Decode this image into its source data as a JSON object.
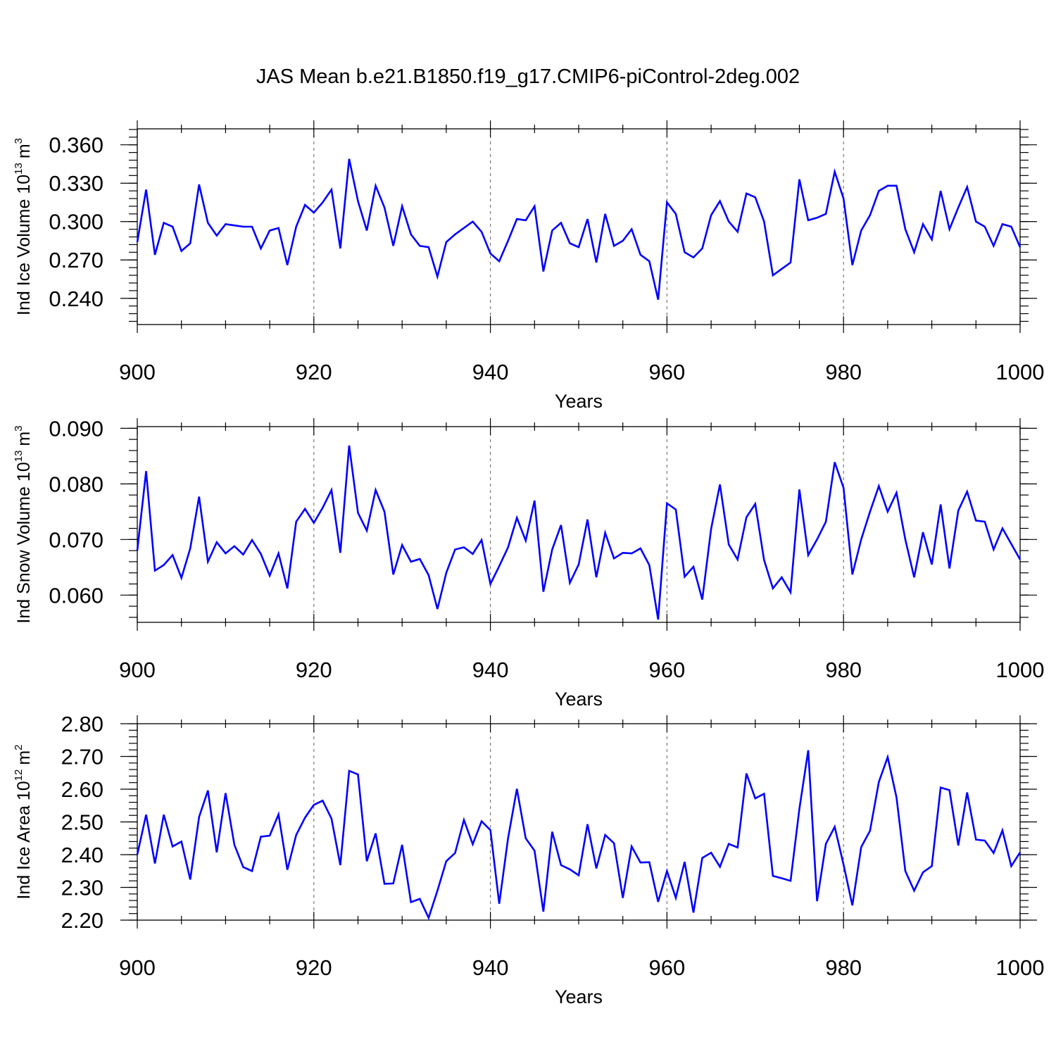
{
  "title": "JAS Mean b.e21.B1850.f19_g17.CMIP6-piControl-2deg.002",
  "line_color": "#0000ff",
  "chart_data": [
    {
      "type": "line",
      "title": "",
      "ylabel": "Ind Ice Volume 10",
      "ylabel_exp": "13",
      "ylabel_unit": "m",
      "ylabel_unit_exp": "3",
      "xlabel": "Years",
      "xlim": [
        900,
        1000
      ],
      "ylim": [
        0.2195,
        0.3725
      ],
      "grid_x": [
        920,
        940,
        960,
        980
      ],
      "x_ticks": [
        900,
        920,
        940,
        960,
        980,
        1000
      ],
      "x_tick_labels": [
        "900",
        "920",
        "940",
        "960",
        "980",
        "1000"
      ],
      "y_ticks": [
        0.24,
        0.27,
        0.3,
        0.33,
        0.36
      ],
      "y_tick_labels": [
        "0.240",
        "0.270",
        "0.300",
        "0.330",
        "0.360"
      ],
      "y_minor_step": 0.006,
      "series": [
        {
          "name": "Ind Ice Volume",
          "x_start": 900,
          "values": [
            0.284,
            0.325,
            0.274,
            0.299,
            0.296,
            0.277,
            0.283,
            0.329,
            0.299,
            0.289,
            0.298,
            0.297,
            0.296,
            0.296,
            0.279,
            0.293,
            0.295,
            0.266,
            0.296,
            0.313,
            0.307,
            0.315,
            0.325,
            0.279,
            0.349,
            0.316,
            0.293,
            0.328,
            0.311,
            0.281,
            0.312,
            0.29,
            0.281,
            0.28,
            0.257,
            0.284,
            0.29,
            0.295,
            0.3,
            0.292,
            0.275,
            0.269,
            0.285,
            0.302,
            0.301,
            0.312,
            0.261,
            0.293,
            0.299,
            0.283,
            0.28,
            0.302,
            0.268,
            0.306,
            0.281,
            0.285,
            0.294,
            0.274,
            0.269,
            0.239,
            0.315,
            0.306,
            0.276,
            0.272,
            0.279,
            0.305,
            0.316,
            0.3,
            0.292,
            0.322,
            0.319,
            0.3,
            0.258,
            0.263,
            0.268,
            0.333,
            0.301,
            0.303,
            0.306,
            0.339,
            0.318,
            0.266,
            0.293,
            0.305,
            0.324,
            0.328,
            0.328,
            0.294,
            0.276,
            0.298,
            0.286,
            0.324,
            0.294,
            0.311,
            0.327,
            0.3,
            0.296,
            0.281,
            0.298,
            0.296,
            0.28
          ]
        }
      ]
    },
    {
      "type": "line",
      "title": "",
      "ylabel": "Ind Snow Volume 10",
      "ylabel_exp": "13",
      "ylabel_unit": "m",
      "ylabel_unit_exp": "3",
      "xlabel": "Years",
      "xlim": [
        900,
        1000
      ],
      "ylim": [
        0.0551,
        0.0903
      ],
      "grid_x": [
        920,
        940,
        960,
        980
      ],
      "x_ticks": [
        900,
        920,
        940,
        960,
        980,
        1000
      ],
      "x_tick_labels": [
        "900",
        "920",
        "940",
        "960",
        "980",
        "1000"
      ],
      "y_ticks": [
        0.06,
        0.07,
        0.08,
        0.09
      ],
      "y_tick_labels": [
        "0.060",
        "0.070",
        "0.080",
        "0.090"
      ],
      "y_minor_step": 0.002,
      "series": [
        {
          "name": "Ind Snow Volume",
          "x_start": 900,
          "values": [
            0.068,
            0.0823,
            0.0644,
            0.0654,
            0.0672,
            0.0631,
            0.0684,
            0.0777,
            0.066,
            0.0695,
            0.0675,
            0.0688,
            0.0673,
            0.0699,
            0.0674,
            0.0635,
            0.0675,
            0.0612,
            0.0732,
            0.0755,
            0.073,
            0.0757,
            0.0789,
            0.0676,
            0.0869,
            0.0748,
            0.0716,
            0.0789,
            0.075,
            0.0637,
            0.069,
            0.066,
            0.0665,
            0.0636,
            0.0575,
            0.064,
            0.0682,
            0.0686,
            0.0674,
            0.0699,
            0.062,
            0.0652,
            0.0686,
            0.0739,
            0.0698,
            0.077,
            0.0606,
            0.0682,
            0.0726,
            0.0622,
            0.0655,
            0.0736,
            0.0632,
            0.0712,
            0.0666,
            0.0676,
            0.0675,
            0.0684,
            0.0654,
            0.0556,
            0.0765,
            0.0754,
            0.0633,
            0.0651,
            0.0592,
            0.0719,
            0.0799,
            0.0691,
            0.0664,
            0.074,
            0.0764,
            0.0663,
            0.0612,
            0.0632,
            0.0605,
            0.079,
            0.0672,
            0.07,
            0.0732,
            0.0839,
            0.0793,
            0.0637,
            0.07,
            0.075,
            0.0796,
            0.075,
            0.0784,
            0.07,
            0.0632,
            0.0713,
            0.0655,
            0.0763,
            0.0648,
            0.0752,
            0.0786,
            0.0734,
            0.0732,
            0.0682,
            0.072,
            0.0692,
            0.0664
          ]
        }
      ]
    },
    {
      "type": "line",
      "title": "",
      "ylabel": "Ind Ice Area 10",
      "ylabel_exp": "12",
      "ylabel_unit": "m",
      "ylabel_unit_exp": "2",
      "xlabel": "Years",
      "xlim": [
        900,
        1000
      ],
      "ylim": [
        2.2,
        2.8
      ],
      "grid_x": [
        920,
        940,
        960,
        980
      ],
      "x_ticks": [
        900,
        920,
        940,
        960,
        980,
        1000
      ],
      "x_tick_labels": [
        "900",
        "920",
        "940",
        "960",
        "980",
        "1000"
      ],
      "y_ticks": [
        2.2,
        2.3,
        2.4,
        2.5,
        2.6,
        2.7,
        2.8
      ],
      "y_tick_labels": [
        "2.20",
        "2.30",
        "2.40",
        "2.50",
        "2.60",
        "2.70",
        "2.80"
      ],
      "y_minor_step": 0.02,
      "series": [
        {
          "name": "Ind Ice Area",
          "x_start": 900,
          "values": [
            2.4,
            2.522,
            2.373,
            2.522,
            2.425,
            2.44,
            2.324,
            2.515,
            2.596,
            2.407,
            2.588,
            2.43,
            2.362,
            2.35,
            2.455,
            2.458,
            2.523,
            2.354,
            2.46,
            2.513,
            2.552,
            2.565,
            2.51,
            2.368,
            2.656,
            2.645,
            2.38,
            2.465,
            2.311,
            2.312,
            2.43,
            2.255,
            2.265,
            2.207,
            2.29,
            2.38,
            2.405,
            2.506,
            2.432,
            2.502,
            2.475,
            2.25,
            2.45,
            2.601,
            2.45,
            2.412,
            2.226,
            2.47,
            2.368,
            2.355,
            2.337,
            2.493,
            2.358,
            2.46,
            2.435,
            2.268,
            2.425,
            2.376,
            2.377,
            2.256,
            2.35,
            2.268,
            2.378,
            2.223,
            2.39,
            2.406,
            2.363,
            2.433,
            2.422,
            2.648,
            2.572,
            2.586,
            2.335,
            2.328,
            2.32,
            2.54,
            2.719,
            2.258,
            2.433,
            2.485,
            2.37,
            2.245,
            2.423,
            2.473,
            2.622,
            2.698,
            2.575,
            2.35,
            2.29,
            2.346,
            2.365,
            2.605,
            2.597,
            2.428,
            2.59,
            2.446,
            2.443,
            2.405,
            2.474,
            2.365,
            2.407
          ]
        }
      ]
    }
  ]
}
